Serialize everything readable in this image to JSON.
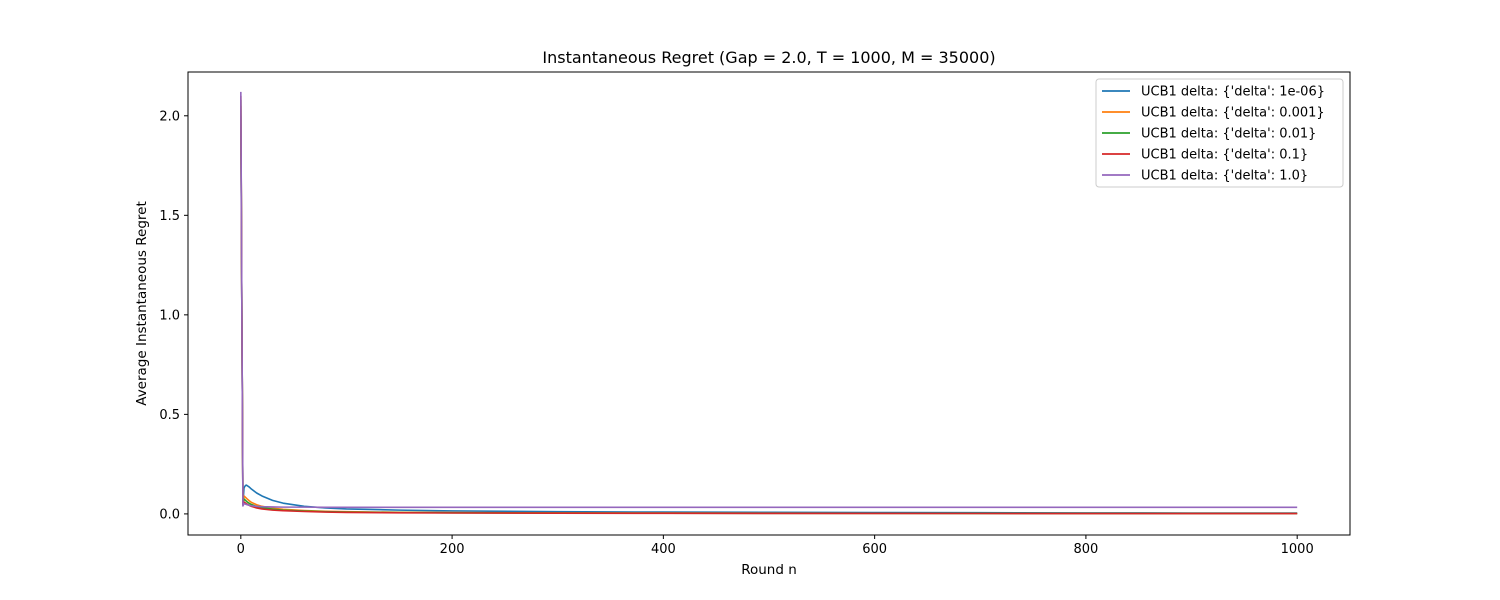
{
  "chart_data": {
    "type": "line",
    "title": "Instantaneous Regret (Gap = 2.0, T = 1000, M = 35000)",
    "xlabel": "Round n",
    "ylabel": "Average Instantaneous Regret",
    "xlim": [
      -50,
      1050
    ],
    "ylim": [
      -0.106,
      2.22
    ],
    "xticks": [
      0,
      200,
      400,
      600,
      800,
      1000
    ],
    "yticks": [
      0.0,
      0.5,
      1.0,
      1.5,
      2.0
    ],
    "xtick_labels": [
      "0",
      "200",
      "400",
      "600",
      "800",
      "1000"
    ],
    "ytick_labels": [
      "0.0",
      "0.5",
      "1.0",
      "1.5",
      "2.0"
    ],
    "legend_position": "top-right",
    "grid": false,
    "series": [
      {
        "name": "UCB1 delta: {'delta': 1e-06}",
        "color": "#1f77b4",
        "x": [
          0,
          1,
          2,
          3,
          4,
          5,
          6,
          8,
          10,
          15,
          20,
          30,
          40,
          60,
          80,
          100,
          150,
          200,
          300,
          400,
          500,
          600,
          700,
          800,
          900,
          1000
        ],
        "y": [
          2.0,
          1.0,
          0.05,
          0.13,
          0.14,
          0.145,
          0.142,
          0.135,
          0.125,
          0.105,
          0.09,
          0.068,
          0.054,
          0.038,
          0.03,
          0.025,
          0.019,
          0.015,
          0.011,
          0.009,
          0.008,
          0.007,
          0.006,
          0.005,
          0.0045,
          0.004
        ]
      },
      {
        "name": "UCB1 delta: {'delta': 0.001}",
        "color": "#ff7f0e",
        "x": [
          0,
          1,
          2,
          3,
          4,
          5,
          6,
          8,
          10,
          15,
          20,
          30,
          40,
          60,
          80,
          100,
          150,
          200,
          300,
          400,
          500,
          600,
          700,
          800,
          900,
          1000
        ],
        "y": [
          2.05,
          1.0,
          0.05,
          0.09,
          0.085,
          0.08,
          0.075,
          0.066,
          0.058,
          0.046,
          0.038,
          0.029,
          0.023,
          0.017,
          0.013,
          0.011,
          0.008,
          0.0065,
          0.005,
          0.004,
          0.0035,
          0.003,
          0.003,
          0.0025,
          0.0025,
          0.002
        ]
      },
      {
        "name": "UCB1 delta: {'delta': 0.01}",
        "color": "#2ca02c",
        "x": [
          0,
          1,
          2,
          3,
          4,
          5,
          6,
          8,
          10,
          15,
          20,
          30,
          40,
          60,
          80,
          100,
          150,
          200,
          300,
          400,
          500,
          600,
          700,
          800,
          900,
          1000
        ],
        "y": [
          2.08,
          1.0,
          0.05,
          0.075,
          0.07,
          0.065,
          0.06,
          0.053,
          0.047,
          0.037,
          0.031,
          0.024,
          0.019,
          0.014,
          0.011,
          0.009,
          0.007,
          0.0055,
          0.004,
          0.0035,
          0.003,
          0.0028,
          0.0025,
          0.0022,
          0.002,
          0.002
        ]
      },
      {
        "name": "UCB1 delta: {'delta': 0.1}",
        "color": "#d62728",
        "x": [
          0,
          1,
          2,
          3,
          4,
          5,
          6,
          8,
          10,
          15,
          20,
          30,
          40,
          60,
          80,
          100,
          150,
          200,
          300,
          400,
          500,
          600,
          700,
          800,
          900,
          1000
        ],
        "y": [
          2.1,
          1.0,
          0.045,
          0.06,
          0.056,
          0.052,
          0.049,
          0.043,
          0.038,
          0.03,
          0.025,
          0.019,
          0.016,
          0.012,
          0.009,
          0.0075,
          0.0055,
          0.0045,
          0.0035,
          0.003,
          0.0025,
          0.0022,
          0.002,
          0.0018,
          0.0016,
          0.0015
        ]
      },
      {
        "name": "UCB1 delta: {'delta': 1.0}",
        "color": "#9467bd",
        "x": [
          0,
          1,
          2,
          3,
          4,
          5,
          6,
          8,
          10,
          15,
          20,
          30,
          40,
          60,
          80,
          100,
          150,
          200,
          300,
          400,
          500,
          600,
          700,
          800,
          900,
          1000
        ],
        "y": [
          2.12,
          1.0,
          0.04,
          0.052,
          0.05,
          0.048,
          0.046,
          0.043,
          0.041,
          0.038,
          0.036,
          0.035,
          0.034,
          0.034,
          0.033,
          0.033,
          0.033,
          0.033,
          0.033,
          0.033,
          0.033,
          0.033,
          0.033,
          0.033,
          0.033,
          0.033
        ]
      }
    ]
  }
}
